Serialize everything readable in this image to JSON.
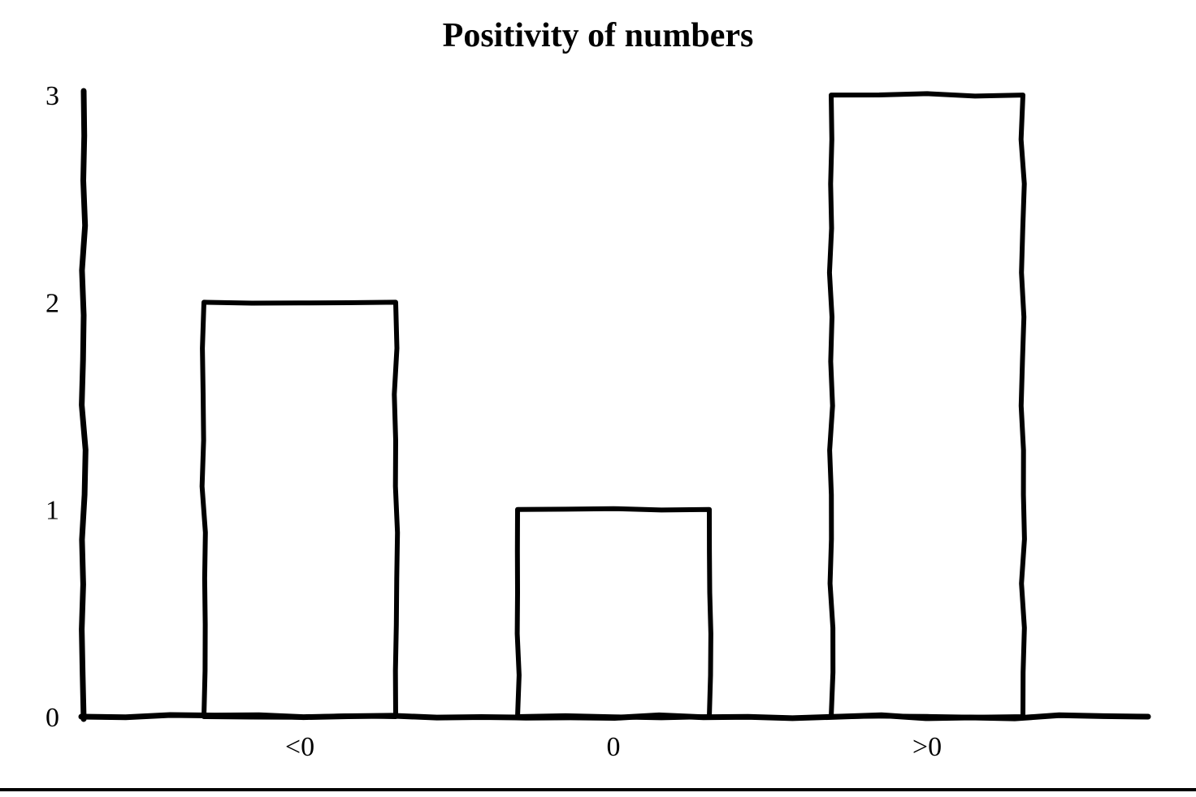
{
  "page": {
    "background": "#ffffff"
  },
  "chart_data": {
    "type": "bar",
    "title": "Positivity of numbers",
    "categories": [
      "<0",
      "0",
      ">0"
    ],
    "values": [
      2,
      1,
      3
    ],
    "xlabel": "",
    "ylabel": "",
    "ylim": [
      0,
      3
    ],
    "yticks": [
      0,
      1,
      2,
      3
    ],
    "grid": false,
    "legend": false,
    "style": "hand-drawn",
    "bar_fill": "#ffffff",
    "stroke_color": "#000000",
    "text_color": "#000000"
  },
  "footer": {
    "rule_color": "#000000"
  }
}
